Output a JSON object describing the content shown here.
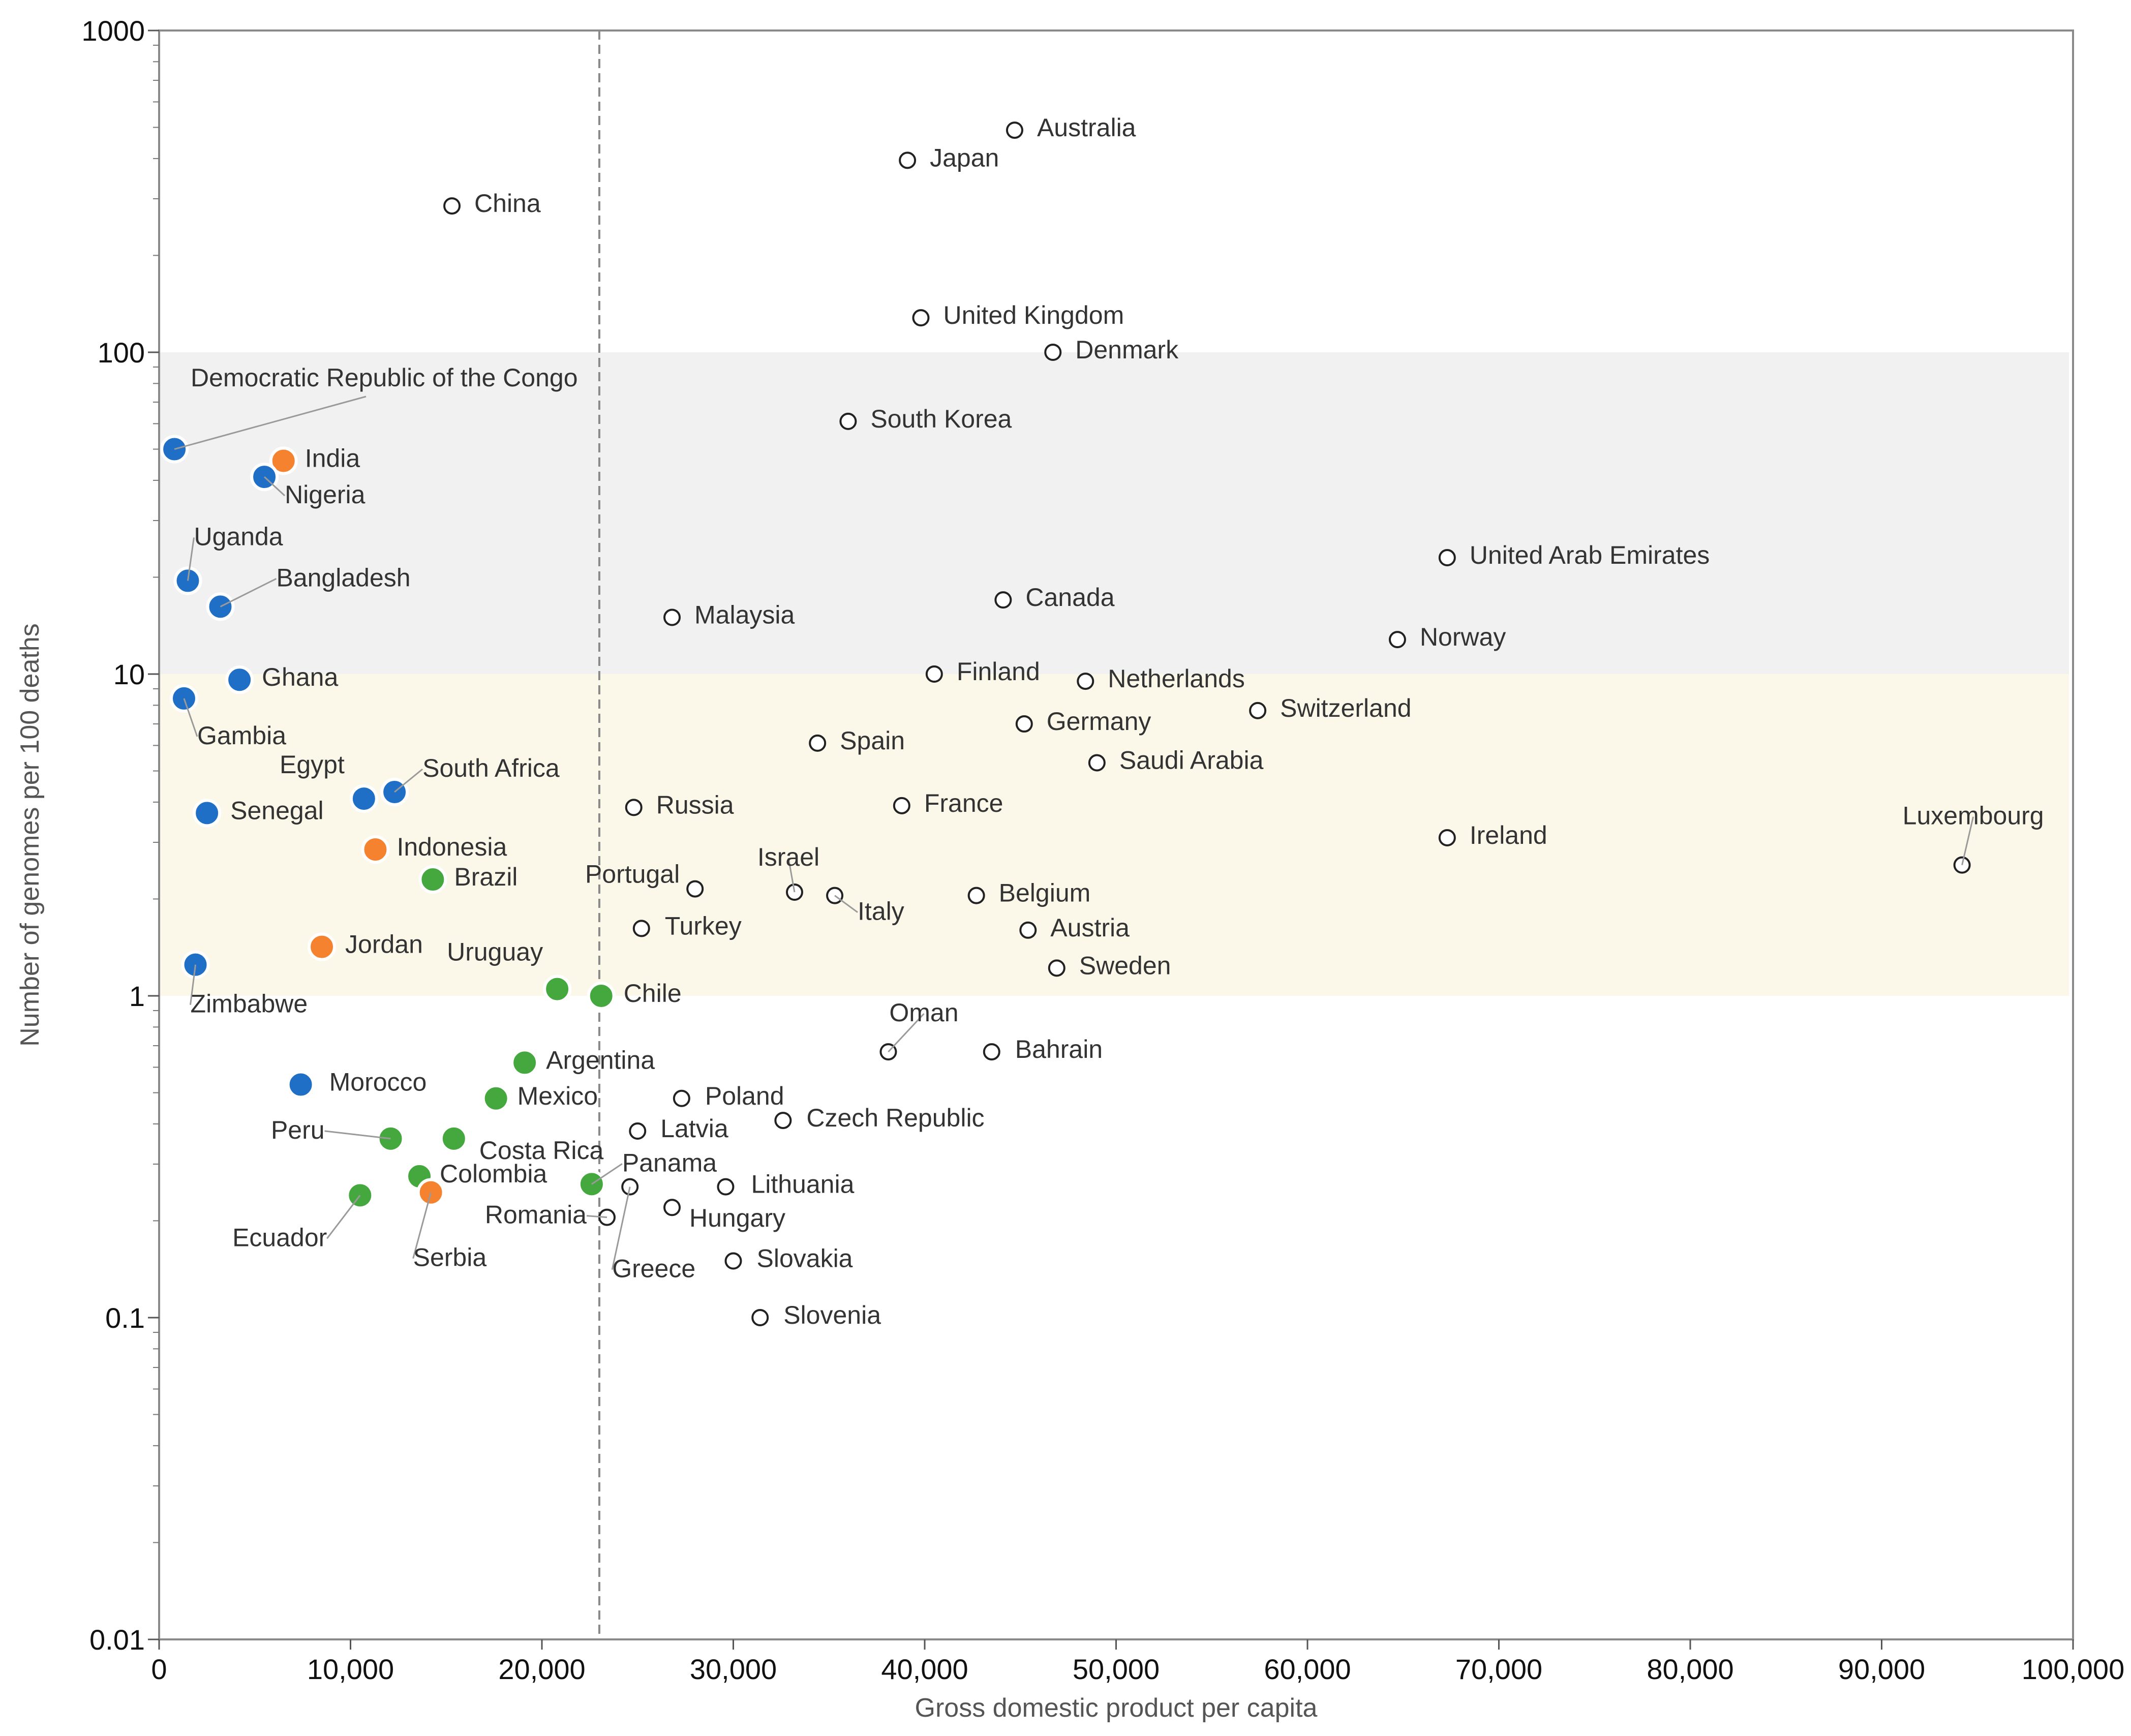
{
  "chart_data": {
    "type": "scatter",
    "title": "",
    "xlabel": "Gross domestic product per capita",
    "ylabel": "Number of genomes per 100 deaths",
    "x_scale": "linear",
    "y_scale": "log",
    "xlim": [
      0,
      100000
    ],
    "ylim": [
      0.01,
      1000
    ],
    "x_ticks": [
      0,
      10000,
      20000,
      30000,
      40000,
      50000,
      60000,
      70000,
      80000,
      90000,
      100000
    ],
    "x_tick_labels": [
      "0",
      "10,000",
      "20,000",
      "30,000",
      "40,000",
      "50,000",
      "60,000",
      "70,000",
      "80,000",
      "90,000",
      "100,000"
    ],
    "y_ticks": [
      0.01,
      0.1,
      1,
      10,
      100,
      1000
    ],
    "y_tick_labels": [
      "0.01",
      "0.1",
      "1",
      "10",
      "100",
      "1000"
    ],
    "reference_line": {
      "axis": "x",
      "value": 23000,
      "style": "dashed"
    },
    "bands": [
      {
        "y_from": 10,
        "y_to": 100,
        "color": "#f1f1f1"
      },
      {
        "y_from": 1,
        "y_to": 10,
        "color": "#fcf8e9"
      }
    ],
    "colors": {
      "blue": "#1f6fc6",
      "orange": "#f5822f",
      "green": "#44a83f",
      "open": "#ffffff",
      "outline": "#222222"
    },
    "points": [
      {
        "name": "Australia",
        "x": 44700,
        "y": 490,
        "group": "open"
      },
      {
        "name": "Japan",
        "x": 39100,
        "y": 395,
        "group": "open"
      },
      {
        "name": "China",
        "x": 15300,
        "y": 285,
        "group": "open"
      },
      {
        "name": "United Kingdom",
        "x": 39800,
        "y": 128,
        "group": "open"
      },
      {
        "name": "Denmark",
        "x": 46700,
        "y": 100,
        "group": "open"
      },
      {
        "name": "South Korea",
        "x": 36000,
        "y": 61,
        "group": "open"
      },
      {
        "name": "Democratic Republic of the Congo",
        "x": 800,
        "y": 50,
        "group": "blue"
      },
      {
        "name": "India",
        "x": 6500,
        "y": 46,
        "group": "orange"
      },
      {
        "name": "Nigeria",
        "x": 5500,
        "y": 41,
        "group": "blue"
      },
      {
        "name": "United Arab Emirates",
        "x": 67300,
        "y": 23,
        "group": "open"
      },
      {
        "name": "Uganda",
        "x": 1500,
        "y": 19.5,
        "group": "blue"
      },
      {
        "name": "Canada",
        "x": 44100,
        "y": 17,
        "group": "open"
      },
      {
        "name": "Bangladesh",
        "x": 3200,
        "y": 16.2,
        "group": "blue"
      },
      {
        "name": "Malaysia",
        "x": 26800,
        "y": 15,
        "group": "open"
      },
      {
        "name": "Norway",
        "x": 64700,
        "y": 12.8,
        "group": "open"
      },
      {
        "name": "Finland",
        "x": 40500,
        "y": 10,
        "group": "open"
      },
      {
        "name": "Ghana",
        "x": 4200,
        "y": 9.6,
        "group": "blue"
      },
      {
        "name": "Netherlands",
        "x": 48400,
        "y": 9.5,
        "group": "open"
      },
      {
        "name": "Gambia",
        "x": 1300,
        "y": 8.4,
        "group": "blue"
      },
      {
        "name": "Switzerland",
        "x": 57400,
        "y": 7.7,
        "group": "open"
      },
      {
        "name": "Germany",
        "x": 45200,
        "y": 7,
        "group": "open"
      },
      {
        "name": "Spain",
        "x": 34400,
        "y": 6.1,
        "group": "open"
      },
      {
        "name": "Saudi Arabia",
        "x": 49000,
        "y": 5.3,
        "group": "open"
      },
      {
        "name": "South Africa",
        "x": 12300,
        "y": 4.3,
        "group": "blue"
      },
      {
        "name": "Egypt",
        "x": 10700,
        "y": 4.1,
        "group": "blue"
      },
      {
        "name": "France",
        "x": 38800,
        "y": 3.9,
        "group": "open"
      },
      {
        "name": "Russia",
        "x": 24800,
        "y": 3.85,
        "group": "open"
      },
      {
        "name": "Senegal",
        "x": 2500,
        "y": 3.7,
        "group": "blue"
      },
      {
        "name": "Ireland",
        "x": 67300,
        "y": 3.1,
        "group": "open"
      },
      {
        "name": "Indonesia",
        "x": 11300,
        "y": 2.85,
        "group": "orange"
      },
      {
        "name": "Luxembourg",
        "x": 94200,
        "y": 2.55,
        "group": "open"
      },
      {
        "name": "Brazil",
        "x": 14300,
        "y": 2.3,
        "group": "green"
      },
      {
        "name": "Portugal",
        "x": 28000,
        "y": 2.15,
        "group": "open"
      },
      {
        "name": "Israel",
        "x": 33200,
        "y": 2.1,
        "group": "open"
      },
      {
        "name": "Italy",
        "x": 35300,
        "y": 2.05,
        "group": "open"
      },
      {
        "name": "Belgium",
        "x": 42700,
        "y": 2.05,
        "group": "open"
      },
      {
        "name": "Turkey",
        "x": 25200,
        "y": 1.62,
        "group": "open"
      },
      {
        "name": "Austria",
        "x": 45400,
        "y": 1.6,
        "group": "open"
      },
      {
        "name": "Jordan",
        "x": 8500,
        "y": 1.42,
        "group": "orange"
      },
      {
        "name": "Zimbabwe",
        "x": 1900,
        "y": 1.25,
        "group": "blue"
      },
      {
        "name": "Sweden",
        "x": 46900,
        "y": 1.22,
        "group": "open"
      },
      {
        "name": "Uruguay",
        "x": 20800,
        "y": 1.05,
        "group": "green"
      },
      {
        "name": "Chile",
        "x": 23100,
        "y": 1,
        "group": "green"
      },
      {
        "name": "Oman",
        "x": 38100,
        "y": 0.67,
        "group": "open"
      },
      {
        "name": "Bahrain",
        "x": 43500,
        "y": 0.67,
        "group": "open"
      },
      {
        "name": "Argentina",
        "x": 19100,
        "y": 0.62,
        "group": "green"
      },
      {
        "name": "Morocco",
        "x": 7400,
        "y": 0.53,
        "group": "blue"
      },
      {
        "name": "Mexico",
        "x": 17600,
        "y": 0.48,
        "group": "green"
      },
      {
        "name": "Poland",
        "x": 27300,
        "y": 0.48,
        "group": "open"
      },
      {
        "name": "Czech Republic",
        "x": 32600,
        "y": 0.41,
        "group": "open"
      },
      {
        "name": "Latvia",
        "x": 25000,
        "y": 0.38,
        "group": "open"
      },
      {
        "name": "Peru",
        "x": 12100,
        "y": 0.36,
        "group": "green"
      },
      {
        "name": "Costa Rica",
        "x": 15400,
        "y": 0.36,
        "group": "green"
      },
      {
        "name": "Colombia",
        "x": 13600,
        "y": 0.275,
        "group": "green"
      },
      {
        "name": "Panama",
        "x": 22600,
        "y": 0.26,
        "group": "green"
      },
      {
        "name": "Greece",
        "x": 24600,
        "y": 0.255,
        "group": "open"
      },
      {
        "name": "Lithuania",
        "x": 29600,
        "y": 0.255,
        "group": "open"
      },
      {
        "name": "Serbia",
        "x": 14200,
        "y": 0.245,
        "group": "orange"
      },
      {
        "name": "Ecuador",
        "x": 10500,
        "y": 0.24,
        "group": "green"
      },
      {
        "name": "Hungary",
        "x": 26800,
        "y": 0.22,
        "group": "open"
      },
      {
        "name": "Romania",
        "x": 23400,
        "y": 0.205,
        "group": "open"
      },
      {
        "name": "Slovakia",
        "x": 30000,
        "y": 0.15,
        "group": "open"
      },
      {
        "name": "Slovenia",
        "x": 31400,
        "y": 0.1,
        "group": "open"
      }
    ]
  }
}
